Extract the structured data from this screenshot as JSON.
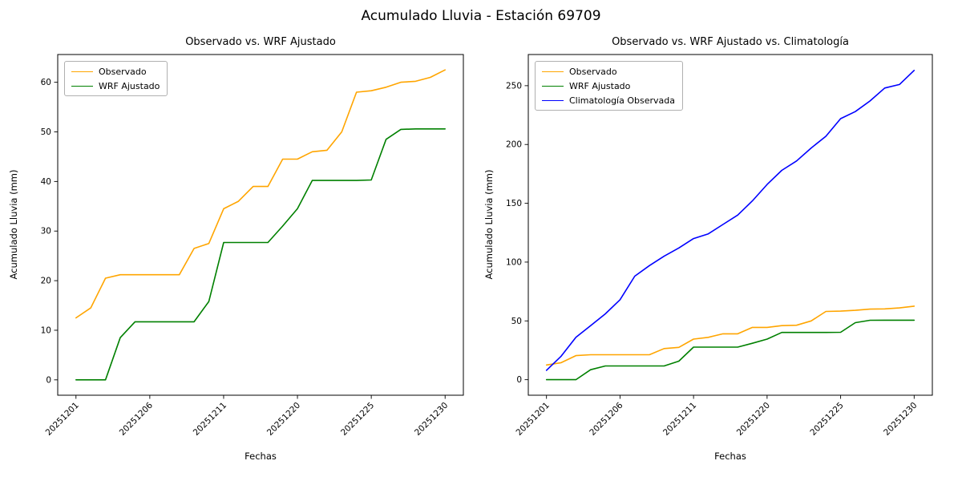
{
  "figure": {
    "suptitle": "Acumulado Lluvia - Estación 69709",
    "background_color": "#ffffff"
  },
  "chart_data": [
    {
      "type": "line",
      "title": "Observado vs. WRF Ajustado",
      "xlabel": "Fechas",
      "ylabel": "Acumulado Lluvia (mm)",
      "legend_position": "upper left",
      "grid": false,
      "x": [
        "20251201",
        "20251202",
        "20251203",
        "20251204",
        "20251205",
        "20251206",
        "20251207",
        "20251208",
        "20251209",
        "20251210",
        "20251211",
        "20251216",
        "20251217",
        "20251218",
        "20251219",
        "20251220",
        "20251221",
        "20251222",
        "20251223",
        "20251224",
        "20251225",
        "20251226",
        "20251227",
        "20251228",
        "20251229",
        "20251230"
      ],
      "xtick_labels": [
        "20251201",
        "20251206",
        "20251211",
        "20251220",
        "20251225",
        "20251230"
      ],
      "xtick_indices": [
        0,
        5,
        10,
        15,
        20,
        25
      ],
      "ytick_values": [
        0,
        10,
        20,
        30,
        40,
        50,
        60
      ],
      "ylim": [
        -3.1,
        65.6
      ],
      "series": [
        {
          "name": "Observado",
          "color": "#ffa500",
          "values": [
            12.5,
            14.5,
            20.5,
            21.2,
            21.2,
            21.2,
            21.2,
            21.2,
            26.5,
            27.5,
            34.5,
            36.0,
            39.0,
            39.0,
            44.5,
            44.5,
            46.0,
            46.3,
            50.0,
            58.0,
            58.3,
            59.0,
            60.0,
            60.2,
            61.0,
            62.5
          ]
        },
        {
          "name": "WRF Ajustado",
          "color": "#008000",
          "values": [
            0.0,
            0.0,
            0.0,
            8.5,
            11.7,
            11.7,
            11.7,
            11.7,
            11.7,
            15.8,
            27.7,
            27.7,
            27.7,
            27.7,
            31.0,
            34.5,
            40.2,
            40.2,
            40.2,
            40.2,
            40.3,
            48.5,
            50.5,
            50.6,
            50.6,
            50.6
          ]
        }
      ]
    },
    {
      "type": "line",
      "title": "Observado vs. WRF Ajustado vs. Climatología",
      "xlabel": "Fechas",
      "ylabel": "Acumulado Lluvia (mm)",
      "legend_position": "upper left",
      "grid": false,
      "x": [
        "20251201",
        "20251202",
        "20251203",
        "20251204",
        "20251205",
        "20251206",
        "20251207",
        "20251208",
        "20251209",
        "20251210",
        "20251211",
        "20251216",
        "20251217",
        "20251218",
        "20251219",
        "20251220",
        "20251221",
        "20251222",
        "20251223",
        "20251224",
        "20251225",
        "20251226",
        "20251227",
        "20251228",
        "20251229",
        "20251230"
      ],
      "xtick_labels": [
        "20251201",
        "20251206",
        "20251211",
        "20251220",
        "20251225",
        "20251230"
      ],
      "xtick_indices": [
        0,
        5,
        10,
        15,
        20,
        25
      ],
      "ytick_values": [
        0,
        50,
        100,
        150,
        200,
        250
      ],
      "ylim": [
        -13.2,
        276.5
      ],
      "series": [
        {
          "name": "Observado",
          "color": "#ffa500",
          "values": [
            12.5,
            14.5,
            20.5,
            21.2,
            21.2,
            21.2,
            21.2,
            21.2,
            26.5,
            27.5,
            34.5,
            36.0,
            39.0,
            39.0,
            44.5,
            44.5,
            46.0,
            46.3,
            50.0,
            58.0,
            58.3,
            59.0,
            60.0,
            60.2,
            61.0,
            62.5
          ]
        },
        {
          "name": "WRF Ajustado",
          "color": "#008000",
          "values": [
            0.0,
            0.0,
            0.0,
            8.5,
            11.7,
            11.7,
            11.7,
            11.7,
            11.7,
            15.8,
            27.7,
            27.7,
            27.7,
            27.7,
            31.0,
            34.5,
            40.2,
            40.2,
            40.2,
            40.2,
            40.3,
            48.5,
            50.5,
            50.6,
            50.6,
            50.6
          ]
        },
        {
          "name": "Climatología Observada",
          "color": "#0000ff",
          "values": [
            8,
            20,
            36,
            46,
            56,
            68,
            88,
            97,
            105,
            112,
            120,
            124,
            132,
            140,
            152,
            166,
            178,
            186,
            197,
            207,
            222,
            228,
            237,
            248,
            251,
            263
          ]
        }
      ]
    }
  ]
}
